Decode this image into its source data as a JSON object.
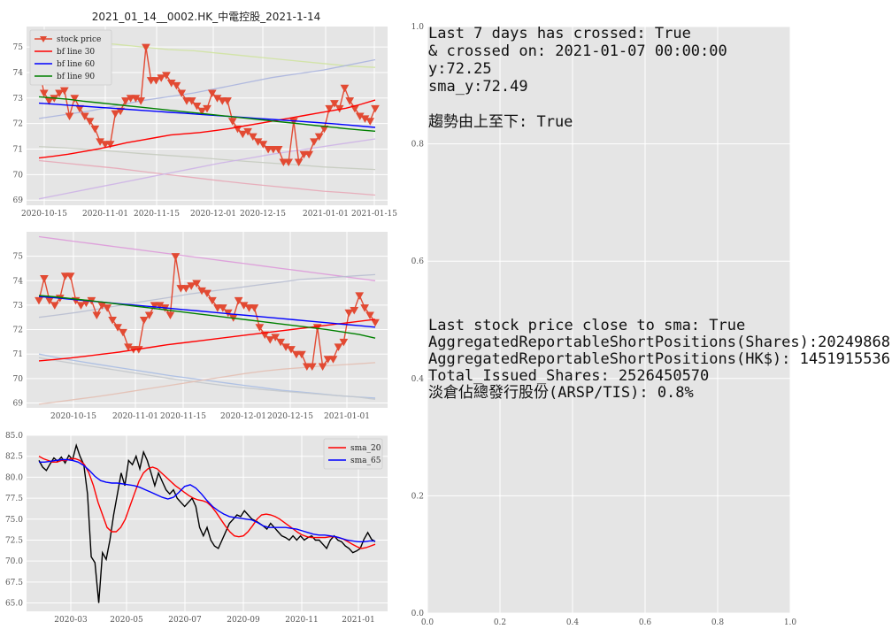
{
  "colors": {
    "panel_bg": "#e5e5e5",
    "grid": "#ffffff",
    "price": "#e24a33",
    "bf30": "#ff0000",
    "bf60": "#0000ff",
    "bf90": "#008000",
    "close": "#000000"
  },
  "chart_data": [
    {
      "type": "line",
      "title": "2021_01_14__0002.HK_中電控股_2021-1-14",
      "xlabel": "",
      "ylabel": "",
      "x_ticks": [
        "2020-10-15",
        "2020-11-01",
        "2020-11-15",
        "2020-12-01",
        "2020-12-15",
        "2021-01-01",
        "2021-01-15"
      ],
      "ylim": [
        68.8,
        75.8
      ],
      "y_ticks": [
        69,
        70,
        71,
        72,
        73,
        74,
        75
      ],
      "legend": {
        "position": "top-left",
        "entries": [
          "stock price",
          "bf line 30",
          "bf line 60",
          "bf line 90"
        ]
      },
      "grid": true,
      "series": [
        {
          "name": "stock price",
          "marker": "triangle-down",
          "values": [
            74.2,
            73.2,
            72.9,
            73.0,
            73.2,
            73.3,
            72.3,
            73.0,
            72.6,
            72.3,
            72.1,
            71.8,
            71.3,
            71.2,
            71.2,
            72.4,
            72.5,
            72.9,
            73.0,
            73.0,
            72.9,
            75.0,
            73.7,
            73.7,
            73.8,
            73.9,
            73.6,
            73.5,
            73.2,
            72.9,
            72.9,
            72.7,
            72.5,
            72.6,
            73.2,
            73.0,
            72.9,
            72.9,
            72.1,
            71.8,
            71.6,
            71.7,
            71.5,
            71.3,
            71.2,
            71.0,
            71.0,
            71.0,
            70.5,
            70.5,
            72.1,
            70.5,
            70.8,
            70.8,
            71.3,
            71.5,
            71.8,
            72.6,
            72.8,
            72.6,
            73.4,
            72.9,
            72.6,
            72.3,
            72.2,
            72.1,
            72.6
          ]
        },
        {
          "name": "bf line 30",
          "values": [
            70.65,
            70.72,
            70.8,
            70.9,
            71.0,
            71.12,
            71.25,
            71.35,
            71.45,
            71.55,
            71.6,
            71.65,
            71.72,
            71.8,
            71.9,
            72.0,
            72.1,
            72.2,
            72.3,
            72.4,
            72.5,
            72.6,
            72.75,
            72.92
          ]
        },
        {
          "name": "bf line 60",
          "values": [
            72.8,
            72.76,
            72.72,
            72.68,
            72.64,
            72.6,
            72.56,
            72.52,
            72.48,
            72.44,
            72.4,
            72.36,
            72.32,
            72.28,
            72.24,
            72.2,
            72.16,
            72.12,
            72.08,
            72.04,
            72.0,
            71.95,
            71.9,
            71.85
          ]
        },
        {
          "name": "bf line 90",
          "values": [
            73.05,
            73.0,
            72.95,
            72.88,
            72.82,
            72.76,
            72.7,
            72.64,
            72.58,
            72.52,
            72.46,
            72.4,
            72.34,
            72.28,
            72.22,
            72.16,
            72.1,
            72.04,
            71.98,
            71.92,
            71.86,
            71.8,
            71.75,
            71.7
          ]
        }
      ],
      "faint_lines": [
        {
          "color": "#cfe3a0",
          "values": [
            75.4,
            75.3,
            75.2,
            75.1,
            75.0,
            74.9,
            74.85,
            74.75,
            74.65,
            74.55,
            74.45,
            74.35,
            74.25,
            74.2
          ]
        },
        {
          "color": "#aab4de",
          "values": [
            72.2,
            72.35,
            72.5,
            72.7,
            72.9,
            73.05,
            73.2,
            73.4,
            73.6,
            73.8,
            73.95,
            74.1,
            74.3,
            74.5
          ]
        },
        {
          "color": "#c5cbbf",
          "values": [
            71.1,
            71.05,
            70.98,
            70.9,
            70.82,
            70.75,
            70.68,
            70.6,
            70.52,
            70.45,
            70.38,
            70.3,
            70.25,
            70.2
          ]
        },
        {
          "color": "#e7a7b6",
          "values": [
            70.55,
            70.45,
            70.35,
            70.25,
            70.12,
            70.0,
            69.88,
            69.76,
            69.65,
            69.55,
            69.45,
            69.35,
            69.28,
            69.2
          ]
        },
        {
          "color": "#cdb2e6",
          "values": [
            69.05,
            69.25,
            69.45,
            69.65,
            69.85,
            70.05,
            70.25,
            70.45,
            70.62,
            70.8,
            70.95,
            71.1,
            71.25,
            71.4
          ]
        }
      ]
    },
    {
      "type": "line",
      "title": "",
      "x_ticks": [
        "2020-10-15",
        "2020-11-01",
        "2020-11-15",
        "2020-12-01",
        "2020-12-15",
        "2021-01-01"
      ],
      "ylim": [
        68.8,
        76.0
      ],
      "y_ticks": [
        69,
        70,
        71,
        72,
        73,
        74,
        75
      ],
      "grid": true,
      "series": [
        {
          "name": "stock price",
          "marker": "triangle-down",
          "values": [
            73.2,
            74.1,
            73.2,
            73.0,
            73.3,
            74.2,
            74.2,
            73.2,
            73.0,
            73.1,
            73.2,
            72.6,
            73.0,
            72.9,
            72.4,
            72.1,
            71.9,
            71.3,
            71.2,
            71.2,
            72.4,
            72.6,
            73.0,
            73.0,
            72.9,
            72.6,
            75.0,
            73.7,
            73.7,
            73.8,
            73.9,
            73.6,
            73.5,
            73.2,
            72.9,
            72.9,
            72.7,
            72.5,
            73.2,
            73.0,
            72.9,
            72.9,
            72.1,
            71.8,
            71.6,
            71.7,
            71.5,
            71.3,
            71.2,
            71.0,
            71.0,
            70.5,
            70.5,
            72.1,
            70.5,
            70.8,
            70.8,
            71.3,
            71.5,
            72.7,
            72.8,
            73.4,
            72.9,
            72.6,
            72.3
          ]
        },
        {
          "name": "bf line 30",
          "values": [
            70.72,
            70.78,
            70.84,
            70.92,
            71.0,
            71.08,
            71.18,
            71.28,
            71.38,
            71.46,
            71.54,
            71.62,
            71.7,
            71.78,
            71.86,
            71.94,
            72.02,
            72.1,
            72.18,
            72.26,
            72.34,
            72.42
          ]
        },
        {
          "name": "bf line 60",
          "values": [
            73.35,
            73.3,
            73.24,
            73.18,
            73.12,
            73.06,
            73.0,
            72.94,
            72.88,
            72.82,
            72.76,
            72.7,
            72.64,
            72.58,
            72.52,
            72.46,
            72.4,
            72.34,
            72.28,
            72.22,
            72.16,
            72.1
          ]
        },
        {
          "name": "bf line 90",
          "values": [
            73.4,
            73.34,
            73.27,
            73.2,
            73.12,
            73.04,
            72.96,
            72.88,
            72.8,
            72.72,
            72.64,
            72.56,
            72.48,
            72.4,
            72.32,
            72.24,
            72.16,
            72.08,
            72.0,
            71.9,
            71.8,
            71.65
          ]
        }
      ],
      "faint_lines": [
        {
          "color": "#dd99d9",
          "values": [
            75.8,
            75.7,
            75.6,
            75.5,
            75.4,
            75.3,
            75.2,
            75.1,
            75.0,
            74.9,
            74.8,
            74.7,
            74.6,
            74.5,
            74.4,
            74.3,
            74.2,
            74.1,
            74.0
          ]
        },
        {
          "color": "#b8bed0",
          "values": [
            72.5,
            72.6,
            72.7,
            72.82,
            72.95,
            73.08,
            73.2,
            73.32,
            73.45,
            73.55,
            73.65,
            73.75,
            73.85,
            73.95,
            74.05,
            74.1,
            74.15,
            74.2,
            74.25
          ]
        },
        {
          "color": "#a9bde3",
          "values": [
            71.0,
            70.85,
            70.72,
            70.6,
            70.48,
            70.36,
            70.24,
            70.12,
            70.02,
            69.92,
            69.82,
            69.72,
            69.62,
            69.52,
            69.45,
            69.38,
            69.3,
            69.25,
            69.2
          ]
        },
        {
          "color": "#c3c8cc",
          "values": [
            70.85,
            70.72,
            70.6,
            70.48,
            70.36,
            70.24,
            70.12,
            70.0,
            69.9,
            69.8,
            69.7,
            69.62,
            69.55,
            69.48,
            69.42,
            69.36,
            69.3,
            69.25,
            69.15
          ]
        },
        {
          "color": "#e3bfb3",
          "values": [
            68.95,
            69.05,
            69.15,
            69.25,
            69.36,
            69.48,
            69.6,
            69.72,
            69.84,
            69.96,
            70.08,
            70.2,
            70.3,
            70.38,
            70.44,
            70.5,
            70.55,
            70.6,
            70.65
          ]
        }
      ]
    },
    {
      "type": "line",
      "title": "",
      "x_ticks": [
        "2020-03",
        "2020-05",
        "2020-07",
        "2020-09",
        "2020-11",
        "2021-01"
      ],
      "ylim": [
        64.0,
        85.0
      ],
      "y_ticks": [
        65.0,
        67.5,
        70.0,
        72.5,
        75.0,
        77.5,
        80.0,
        82.5,
        85.0
      ],
      "legend": {
        "position": "top-right",
        "entries": [
          "sma_20",
          "sma_65"
        ]
      },
      "grid": true,
      "series": [
        {
          "name": "close",
          "values": [
            82.0,
            81.2,
            80.8,
            81.6,
            82.3,
            81.9,
            82.4,
            81.7,
            82.6,
            82.1,
            83.8,
            82.5,
            81.5,
            78.0,
            70.5,
            69.8,
            65.0,
            71.0,
            70.2,
            72.5,
            75.5,
            78.0,
            80.5,
            79.0,
            82.0,
            81.5,
            82.5,
            81.0,
            83.0,
            82.0,
            80.5,
            79.0,
            80.5,
            79.5,
            78.5,
            78.0,
            78.5,
            77.5,
            77.0,
            76.5,
            77.0,
            77.5,
            76.5,
            74.0,
            73.0,
            74.0,
            72.5,
            71.8,
            71.5,
            72.5,
            73.5,
            74.5,
            75.0,
            75.5,
            75.3,
            76.0,
            75.5,
            75.0,
            74.8,
            74.5,
            74.2,
            73.8,
            74.5,
            74.0,
            73.5,
            73.0,
            72.8,
            72.5,
            73.0,
            72.5,
            73.0,
            72.5,
            72.8,
            73.0,
            72.5,
            72.5,
            72.0,
            71.5,
            72.5,
            73.0,
            72.5,
            72.3,
            71.8,
            71.5,
            71.0,
            71.2,
            71.5,
            72.6,
            73.4,
            72.6,
            72.3
          ]
        },
        {
          "name": "sma_20",
          "values": [
            82.5,
            82.2,
            82.0,
            81.8,
            81.8,
            82.0,
            82.0,
            82.2,
            82.2,
            82.0,
            81.5,
            80.5,
            79.0,
            77.0,
            75.5,
            74.0,
            73.5,
            73.5,
            74.0,
            75.0,
            76.5,
            78.0,
            79.5,
            80.5,
            81.0,
            81.2,
            81.0,
            80.5,
            80.0,
            79.5,
            79.0,
            78.6,
            78.2,
            77.8,
            77.5,
            77.3,
            77.2,
            77.0,
            76.5,
            75.8,
            75.0,
            74.2,
            73.5,
            73.0,
            72.9,
            73.0,
            73.5,
            74.2,
            75.0,
            75.5,
            75.6,
            75.5,
            75.3,
            75.0,
            74.6,
            74.2,
            73.8,
            73.4,
            73.1,
            72.9,
            72.8,
            72.8,
            72.8,
            72.8,
            72.9,
            72.9,
            72.8,
            72.6,
            72.3,
            72.0,
            71.7,
            71.5,
            71.6,
            71.8,
            72.0
          ]
        },
        {
          "name": "sma_65",
          "values": [
            81.8,
            81.8,
            81.9,
            82.0,
            82.1,
            82.1,
            82.0,
            81.8,
            81.4,
            80.8,
            80.1,
            79.6,
            79.4,
            79.3,
            79.3,
            79.2,
            79.1,
            79.0,
            78.8,
            78.5,
            78.2,
            77.9,
            77.6,
            77.4,
            77.6,
            78.2,
            78.9,
            79.1,
            78.7,
            78.0,
            77.2,
            76.5,
            76.0,
            75.6,
            75.3,
            75.2,
            75.1,
            75.0,
            74.9,
            74.6,
            74.2,
            74.0,
            74.0,
            74.0,
            74.0,
            73.9,
            73.8,
            73.6,
            73.4,
            73.2,
            73.1,
            73.1,
            73.0,
            72.9,
            72.7,
            72.5,
            72.4,
            72.3,
            72.3,
            72.4,
            72.4
          ]
        }
      ]
    },
    {
      "type": "table",
      "x_ticks": [
        "0.0",
        "0.2",
        "0.4",
        "0.6",
        "0.8",
        "1.0"
      ],
      "y_ticks": [
        "0.0",
        "0.2",
        "0.4",
        "0.6",
        "0.8",
        "1.0"
      ],
      "text_block_1": [
        "Last 7 days has crossed: True",
        "& crossed on: 2021-01-07 00:00:00",
        "y:72.25",
        "sma_y:72.49",
        "",
        "趨勢由上至下: True"
      ],
      "text_block_2": [
        "Last stock price close to sma: True",
        "AggregatedReportableShortPositions(Shares):20249868",
        "AggregatedReportableShortPositions(HK$): 1451915536",
        "Total_Issued_Shares: 2526450570",
        "淡倉佔總發行股份(ARSP/TIS): 0.8%"
      ]
    }
  ]
}
